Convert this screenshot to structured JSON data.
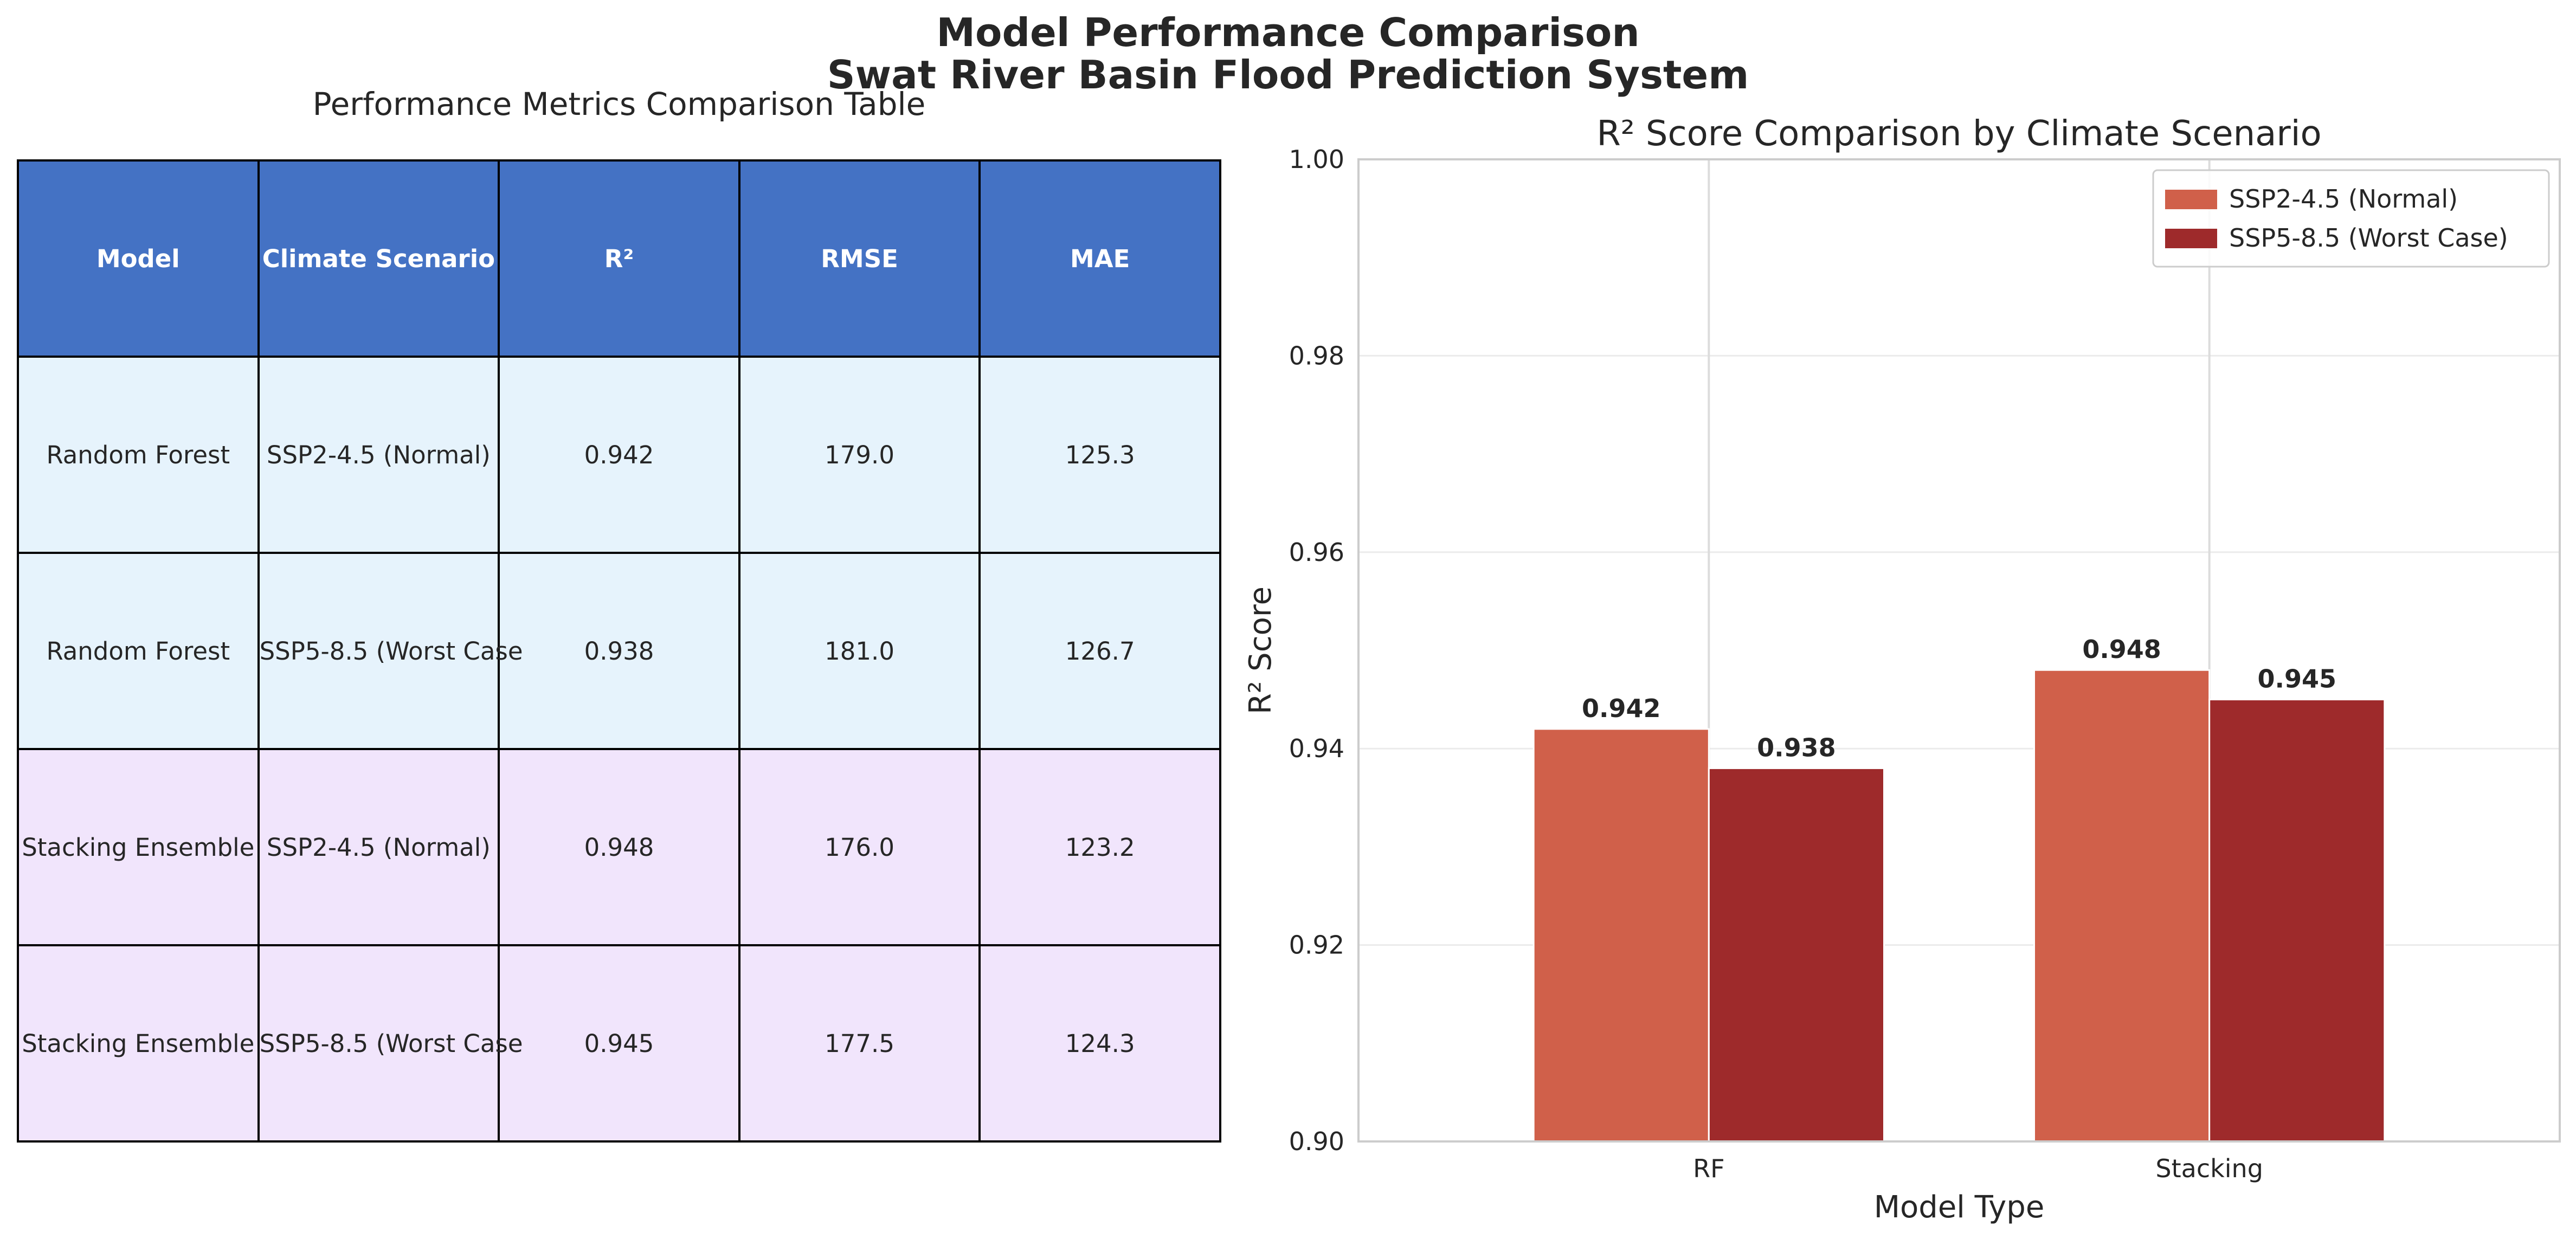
{
  "title_line1": "Model Performance Comparison",
  "title_line2": "Swat River Basin Flood Prediction System",
  "table": {
    "title": "Performance Metrics Comparison Table",
    "headers": [
      "Model",
      "Climate Scenario",
      "R²",
      "RMSE",
      "MAE"
    ],
    "header_color": "#4472c4",
    "rows": [
      {
        "cells": [
          "Random Forest",
          "SSP2-4.5 (Normal)",
          "0.942",
          "179.0",
          "125.3"
        ],
        "color": "#e6f3fc"
      },
      {
        "cells": [
          "Random Forest",
          "SSP5-8.5 (Worst Case",
          "0.938",
          "181.0",
          "126.7"
        ],
        "color": "#e6f3fc"
      },
      {
        "cells": [
          "Stacking Ensemble",
          "SSP2-4.5 (Normal)",
          "0.948",
          "176.0",
          "123.2"
        ],
        "color": "#f1e5fc"
      },
      {
        "cells": [
          "Stacking Ensemble",
          "SSP5-8.5 (Worst Case",
          "0.945",
          "177.5",
          "124.3"
        ],
        "color": "#f1e5fc"
      }
    ]
  },
  "chart_data": {
    "type": "bar",
    "title": "R² Score Comparison by Climate Scenario",
    "xlabel": "Model Type",
    "ylabel": "R² Score",
    "categories": [
      "RF",
      "Stacking"
    ],
    "series": [
      {
        "name": "SSP2-4.5 (Normal)",
        "values": [
          0.942,
          0.948
        ],
        "color": "#d0604a"
      },
      {
        "name": "SSP5-8.5 (Worst Case)",
        "values": [
          0.938,
          0.945
        ],
        "color": "#9e2a2b"
      }
    ],
    "value_labels": [
      "0.942",
      "0.948",
      "0.938",
      "0.945"
    ],
    "ylim": [
      0.9,
      1.0
    ],
    "yticks": [
      "0.90",
      "0.92",
      "0.94",
      "0.96",
      "0.98",
      "1.00"
    ],
    "grid": true,
    "legend": "upper-right"
  }
}
